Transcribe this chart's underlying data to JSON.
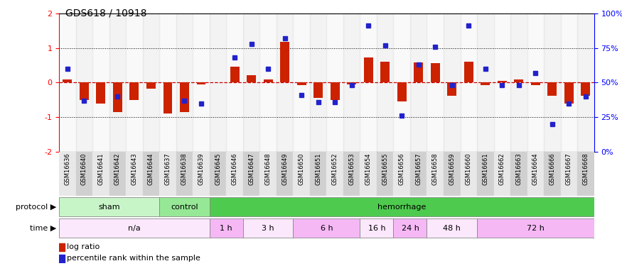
{
  "title": "GDS618 / 10918",
  "samples": [
    "GSM16636",
    "GSM16640",
    "GSM16641",
    "GSM16642",
    "GSM16643",
    "GSM16644",
    "GSM16637",
    "GSM16638",
    "GSM16639",
    "GSM16645",
    "GSM16646",
    "GSM16647",
    "GSM16648",
    "GSM16649",
    "GSM16650",
    "GSM16651",
    "GSM16652",
    "GSM16653",
    "GSM16654",
    "GSM16655",
    "GSM16656",
    "GSM16657",
    "GSM16658",
    "GSM16659",
    "GSM16660",
    "GSM16661",
    "GSM16662",
    "GSM16663",
    "GSM16664",
    "GSM16666",
    "GSM16667",
    "GSM16668"
  ],
  "log_ratio": [
    0.08,
    -0.5,
    -0.6,
    -0.85,
    -0.5,
    -0.18,
    -0.9,
    -0.85,
    -0.05,
    0.0,
    0.45,
    0.22,
    0.08,
    1.18,
    -0.08,
    -0.45,
    -0.5,
    -0.05,
    0.72,
    0.6,
    -0.55,
    0.57,
    0.55,
    -0.38,
    0.6,
    -0.08,
    0.05,
    0.08,
    -0.08,
    -0.38,
    -0.6,
    -0.38
  ],
  "pct_rank": [
    60,
    37,
    null,
    40,
    null,
    null,
    null,
    37,
    35,
    null,
    68,
    78,
    60,
    82,
    41,
    36,
    36,
    48,
    91,
    77,
    26,
    63,
    76,
    48,
    91,
    60,
    48,
    48,
    57,
    20,
    35,
    40
  ],
  "protocol_groups": [
    {
      "label": "sham",
      "start": 0,
      "end": 6,
      "color": "#c8f5c8"
    },
    {
      "label": "control",
      "start": 6,
      "end": 9,
      "color": "#96e896"
    },
    {
      "label": "hemorrhage",
      "start": 9,
      "end": 32,
      "color": "#4ecb4e"
    }
  ],
  "time_groups": [
    {
      "label": "n/a",
      "start": 0,
      "end": 9,
      "color": "#fce8fc"
    },
    {
      "label": "1 h",
      "start": 9,
      "end": 11,
      "color": "#f5b8f5"
    },
    {
      "label": "3 h",
      "start": 11,
      "end": 14,
      "color": "#fce8fc"
    },
    {
      "label": "6 h",
      "start": 14,
      "end": 18,
      "color": "#f5b8f5"
    },
    {
      "label": "16 h",
      "start": 18,
      "end": 20,
      "color": "#fce8fc"
    },
    {
      "label": "24 h",
      "start": 20,
      "end": 22,
      "color": "#f5b8f5"
    },
    {
      "label": "48 h",
      "start": 22,
      "end": 25,
      "color": "#fce8fc"
    },
    {
      "label": "72 h",
      "start": 25,
      "end": 32,
      "color": "#f5b8f5"
    }
  ],
  "ylim": [
    -2,
    2
  ],
  "bar_color": "#cc2200",
  "dot_color": "#2222cc",
  "zero_line_color": "#cc0000",
  "bar_width": 0.55
}
